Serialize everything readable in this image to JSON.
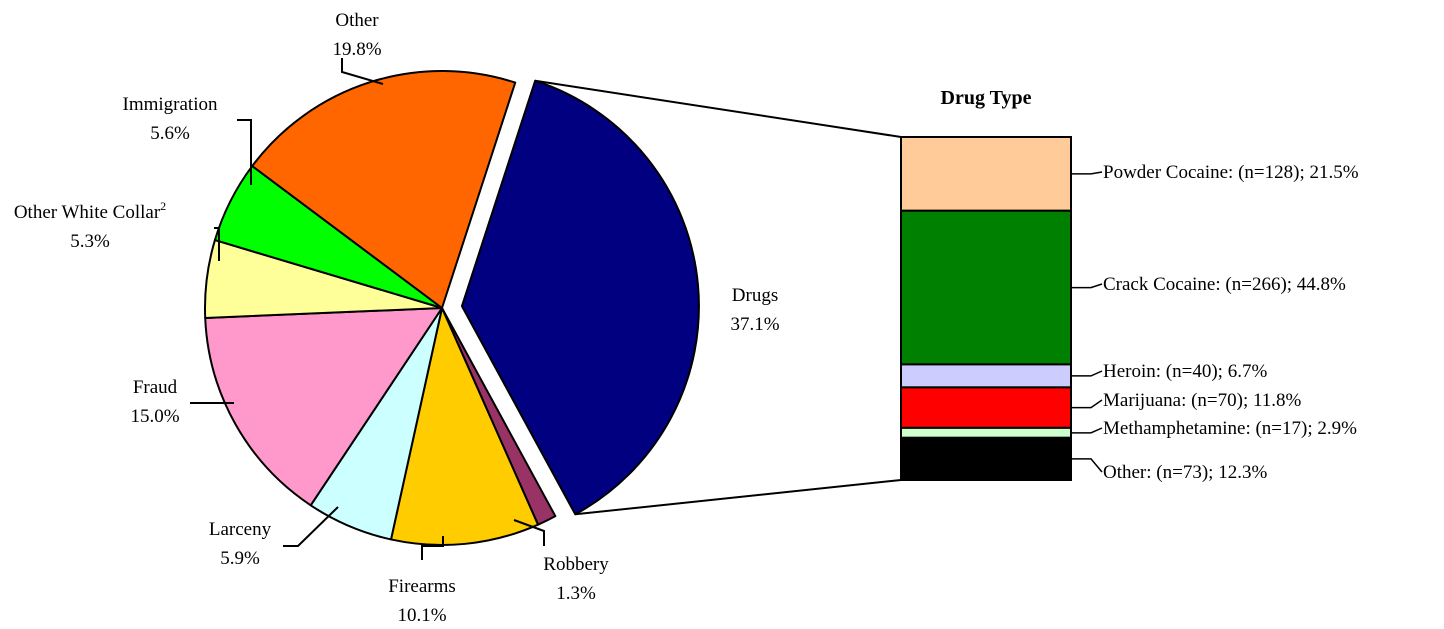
{
  "chart_data": [
    {
      "type": "pie",
      "start_category": "Drugs",
      "start_angle_deg": 18,
      "direction": "clockwise",
      "exploded": "Drugs",
      "slices": [
        {
          "label": "Drugs",
          "value": 37.1,
          "display": "37.1%",
          "color": "#000080"
        },
        {
          "label": "Robbery",
          "value": 1.3,
          "display": "1.3%",
          "color": "#993366"
        },
        {
          "label": "Firearms",
          "value": 10.1,
          "display": "10.1%",
          "color": "#FFCC00"
        },
        {
          "label": "Larceny",
          "value": 5.9,
          "display": "5.9%",
          "color": "#CCFFFF"
        },
        {
          "label": "Fraud",
          "value": 15.0,
          "display": "15.0%",
          "color": "#FF99CC"
        },
        {
          "label": "Other White Collar",
          "superscript": "2",
          "value": 5.3,
          "display": "5.3%",
          "color": "#FFFF99"
        },
        {
          "label": "Immigration",
          "value": 5.6,
          "display": "5.6%",
          "color": "#00FF00"
        },
        {
          "label": "Other",
          "value": 19.8,
          "display": "19.8%",
          "color": "#FF6600"
        }
      ]
    },
    {
      "type": "bar",
      "stacked": true,
      "orientation": "vertical",
      "title": "Drug Type",
      "ylim": [
        0,
        100
      ],
      "segments": [
        {
          "label": "Powder Cocaine: (n=128); 21.5%",
          "n": 128,
          "value": 21.5,
          "color": "#FFCC99"
        },
        {
          "label": "Crack Cocaine: (n=266); 44.8%",
          "n": 266,
          "value": 44.8,
          "color": "#008000"
        },
        {
          "label": "Heroin: (n=40); 6.7%",
          "n": 40,
          "value": 6.7,
          "color": "#CCCCFF"
        },
        {
          "label": "Marijuana: (n=70); 11.8%",
          "n": 70,
          "value": 11.8,
          "color": "#FF0000"
        },
        {
          "label": "Methamphetamine: (n=17); 2.9%",
          "n": 17,
          "value": 2.9,
          "color": "#CCFFCC"
        },
        {
          "label": "Other: (n=73); 12.3%",
          "n": 73,
          "value": 12.3,
          "color": "#000000"
        }
      ]
    }
  ]
}
